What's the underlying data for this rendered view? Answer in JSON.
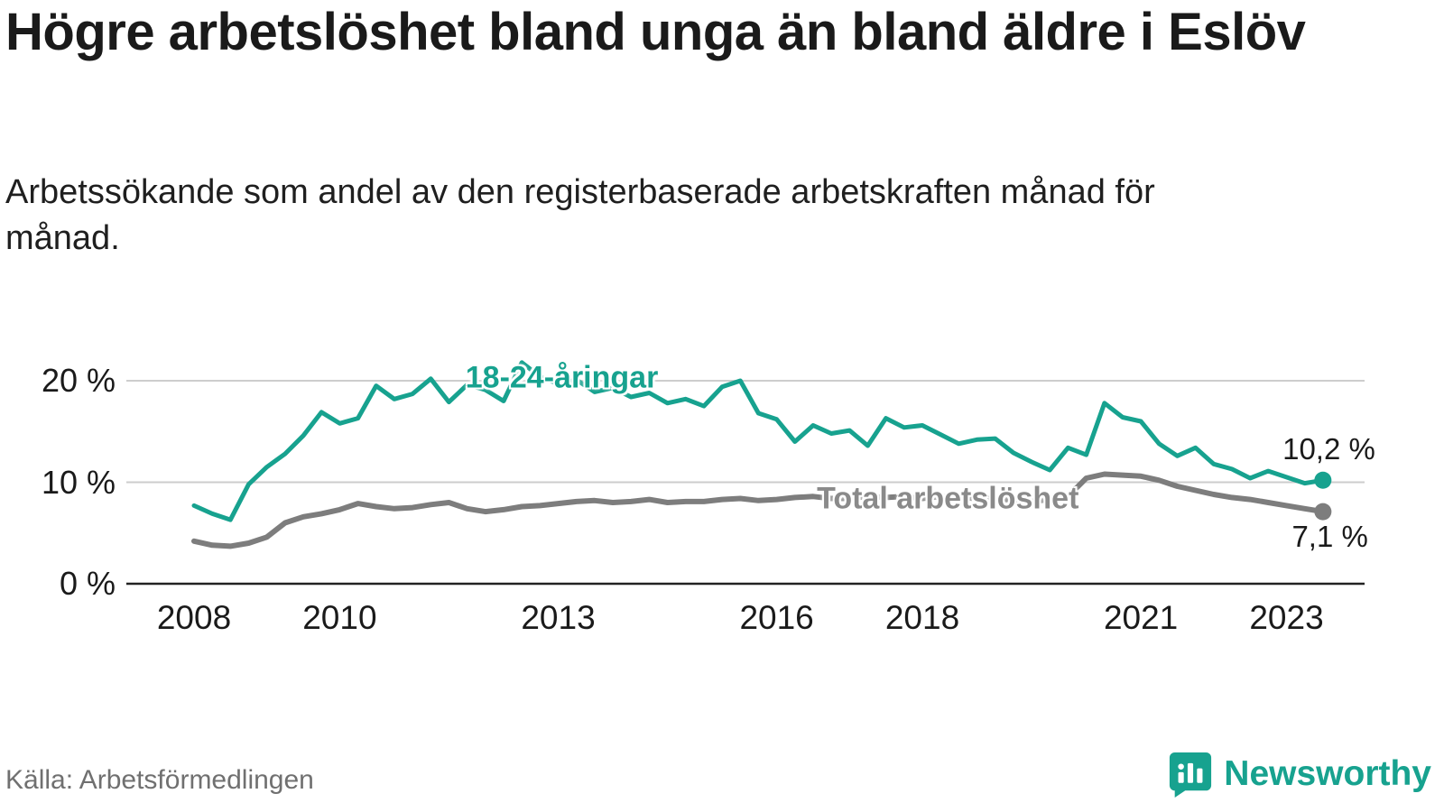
{
  "title": "Högre arbetslöshet bland unga än bland äldre i Eslöv",
  "subtitle": "Arbetssökande som andel av den registerbaserade arbetskraften månad för månad.",
  "source": "Källa: Arbetsförmedlingen",
  "logo": {
    "text": "Newsworthy",
    "icon": "bar-chart-bubble-icon",
    "color": "#17a28f"
  },
  "colors": {
    "youth_line": "#17a28f",
    "total_line": "#7d7d7d",
    "total_label": "#8a8a8a",
    "grid": "#cdcdcd",
    "axis": "#222222",
    "text": "#1a1a1a"
  },
  "chart_data": {
    "type": "line",
    "title": "Högre arbetslöshet bland unga än bland äldre i Eslöv",
    "xlabel": "",
    "ylabel": "Arbetssökande som andel av den registerbaserade arbetskraften",
    "grid": true,
    "legend_position": "inline-labels",
    "x_ticks": [
      2008,
      2010,
      2013,
      2016,
      2018,
      2021,
      2023
    ],
    "y_ticks": [
      0,
      10,
      20
    ],
    "y_tick_labels": [
      "0 %",
      "10 %",
      "20 %"
    ],
    "ylim": [
      0,
      24
    ],
    "x_start": 2008.0,
    "x_step": 0.25,
    "series": [
      {
        "name": "18-24-åringar",
        "color": "#17a28f",
        "end_label": "10,2 %",
        "end_value": 10.2,
        "label_anchor": {
          "x": 2013.05,
          "y": 20.3
        },
        "values": [
          7.7,
          6.9,
          6.3,
          9.8,
          11.5,
          12.8,
          14.6,
          16.9,
          15.8,
          16.3,
          19.5,
          18.2,
          18.7,
          20.2,
          17.9,
          19.6,
          19.1,
          18.0,
          21.8,
          20.4,
          19.7,
          20.1,
          18.9,
          19.3,
          18.4,
          18.8,
          17.8,
          18.2,
          17.5,
          19.4,
          20.0,
          16.8,
          16.2,
          14.0,
          15.6,
          14.8,
          15.1,
          13.6,
          16.3,
          15.4,
          15.6,
          14.7,
          13.8,
          14.2,
          14.3,
          12.9,
          12.0,
          11.2,
          13.4,
          12.7,
          17.8,
          16.4,
          16.0,
          13.8,
          12.6,
          13.4,
          11.8,
          11.3,
          10.4,
          11.1,
          10.5,
          9.9,
          10.2
        ]
      },
      {
        "name": "Total arbetslöshet",
        "color": "#7d7d7d",
        "end_label": "7,1 %",
        "end_value": 7.1,
        "label_anchor": {
          "x": 2018.35,
          "y": 8.35
        },
        "values": [
          4.2,
          3.8,
          3.7,
          4.0,
          4.6,
          6.0,
          6.6,
          6.9,
          7.3,
          7.9,
          7.6,
          7.4,
          7.5,
          7.8,
          8.0,
          7.4,
          7.1,
          7.3,
          7.6,
          7.7,
          7.9,
          8.1,
          8.2,
          8.0,
          8.1,
          8.3,
          8.0,
          8.1,
          8.1,
          8.3,
          8.4,
          8.2,
          8.3,
          8.5,
          8.6,
          8.4,
          8.4,
          8.6,
          8.5,
          8.6,
          8.4,
          8.6,
          8.5,
          8.4,
          8.4,
          8.2,
          8.1,
          8.3,
          8.6,
          10.4,
          10.8,
          10.7,
          10.6,
          10.2,
          9.6,
          9.2,
          8.8,
          8.5,
          8.3,
          8.0,
          7.7,
          7.4,
          7.1
        ]
      }
    ]
  }
}
